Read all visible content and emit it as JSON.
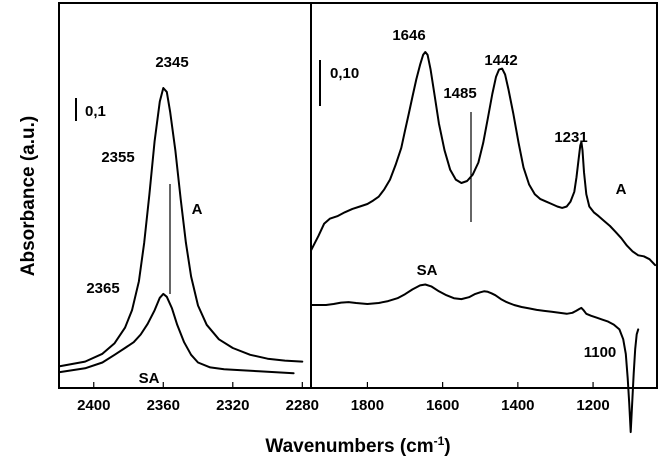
{
  "chart_data": [
    {
      "type": "line",
      "panel": "left",
      "xlabel": "Wavenumbers (cm-1)",
      "ylabel": "Absorbance (a.u.)",
      "xlim": [
        2420,
        2275
      ],
      "x_ticks": [
        2400,
        2360,
        2320,
        2280
      ],
      "y_units": "a.u.",
      "scale_bar": "0,1",
      "peak_labels": [
        {
          "text": "2345",
          "x": 2358
        },
        {
          "text": "2355",
          "x": 2370
        },
        {
          "text": "2365",
          "x": 2380
        }
      ],
      "series": [
        {
          "name": "A",
          "x": [
            2420,
            2405,
            2395,
            2388,
            2382,
            2378,
            2374,
            2371,
            2368,
            2365,
            2362,
            2360,
            2358,
            2356,
            2353,
            2350,
            2347,
            2344,
            2340,
            2335,
            2328,
            2320,
            2310,
            2300,
            2290,
            2280
          ],
          "y": [
            0.012,
            0.017,
            0.025,
            0.036,
            0.052,
            0.07,
            0.1,
            0.14,
            0.19,
            0.245,
            0.286,
            0.3,
            0.296,
            0.275,
            0.235,
            0.185,
            0.14,
            0.105,
            0.075,
            0.055,
            0.04,
            0.031,
            0.024,
            0.02,
            0.018,
            0.017
          ]
        },
        {
          "name": "SA",
          "x": [
            2420,
            2405,
            2395,
            2388,
            2382,
            2377,
            2373,
            2369,
            2365,
            2362,
            2360,
            2358,
            2355,
            2352,
            2348,
            2344,
            2340,
            2333,
            2325,
            2315,
            2305,
            2295,
            2285
          ],
          "y": [
            0.006,
            0.01,
            0.016,
            0.024,
            0.031,
            0.037,
            0.045,
            0.056,
            0.07,
            0.083,
            0.087,
            0.084,
            0.072,
            0.055,
            0.037,
            0.024,
            0.016,
            0.011,
            0.009,
            0.008,
            0.007,
            0.006,
            0.005
          ]
        }
      ]
    },
    {
      "type": "line",
      "panel": "right",
      "xlim": [
        1950,
        1030
      ],
      "x_ticks": [
        1800,
        1600,
        1400,
        1200
      ],
      "scale_bar": "0,10",
      "peak_labels": [
        {
          "text": "1646",
          "x": 1646
        },
        {
          "text": "1485",
          "x": 1485
        },
        {
          "text": "1442",
          "x": 1442
        },
        {
          "text": "1231",
          "x": 1231
        },
        {
          "text": "1100",
          "x": 1100
        }
      ],
      "series": [
        {
          "name": "A",
          "x": [
            1950,
            1930,
            1915,
            1900,
            1880,
            1860,
            1840,
            1820,
            1800,
            1785,
            1770,
            1755,
            1740,
            1725,
            1710,
            1700,
            1690,
            1680,
            1670,
            1660,
            1652,
            1646,
            1640,
            1632,
            1622,
            1610,
            1595,
            1580,
            1565,
            1550,
            1535,
            1520,
            1505,
            1492,
            1480,
            1468,
            1458,
            1450,
            1442,
            1434,
            1425,
            1412,
            1398,
            1385,
            1370,
            1355,
            1340,
            1325,
            1310,
            1295,
            1282,
            1270,
            1260,
            1250,
            1244,
            1238,
            1234,
            1231,
            1228,
            1224,
            1218,
            1210,
            1198,
            1185,
            1170,
            1155,
            1140,
            1125,
            1110,
            1095,
            1080,
            1065,
            1050,
            1035
          ],
          "y": [
            0.04,
            0.07,
            0.095,
            0.105,
            0.11,
            0.118,
            0.125,
            0.13,
            0.135,
            0.142,
            0.15,
            0.165,
            0.185,
            0.215,
            0.25,
            0.285,
            0.32,
            0.355,
            0.39,
            0.42,
            0.44,
            0.446,
            0.44,
            0.41,
            0.36,
            0.3,
            0.245,
            0.205,
            0.185,
            0.178,
            0.182,
            0.195,
            0.22,
            0.26,
            0.31,
            0.36,
            0.395,
            0.41,
            0.412,
            0.4,
            0.37,
            0.32,
            0.26,
            0.21,
            0.175,
            0.155,
            0.145,
            0.14,
            0.135,
            0.13,
            0.127,
            0.13,
            0.14,
            0.16,
            0.19,
            0.23,
            0.255,
            0.262,
            0.245,
            0.2,
            0.155,
            0.13,
            0.118,
            0.11,
            0.1,
            0.09,
            0.078,
            0.065,
            0.05,
            0.038,
            0.03,
            0.028,
            0.022,
            0.01
          ]
        },
        {
          "name": "SA",
          "x": [
            1950,
            1930,
            1910,
            1890,
            1870,
            1850,
            1830,
            1800,
            1770,
            1745,
            1720,
            1700,
            1680,
            1660,
            1646,
            1630,
            1610,
            1590,
            1570,
            1550,
            1530,
            1515,
            1500,
            1490,
            1480,
            1470,
            1460,
            1445,
            1430,
            1410,
            1390,
            1370,
            1350,
            1330,
            1310,
            1290,
            1270,
            1255,
            1245,
            1236,
            1231,
            1226,
            1218,
            1205,
            1190,
            1175,
            1160,
            1145,
            1130,
            1120,
            1113,
            1108,
            1104,
            1100,
            1096,
            1092,
            1088,
            1084,
            1080
          ],
          "y": [
            0.0,
            0.0,
            0.0,
            0.002,
            0.005,
            0.006,
            0.004,
            0.002,
            0.004,
            0.008,
            0.014,
            0.022,
            0.032,
            0.04,
            0.042,
            0.038,
            0.028,
            0.02,
            0.014,
            0.012,
            0.016,
            0.022,
            0.026,
            0.028,
            0.027,
            0.024,
            0.02,
            0.012,
            0.006,
            0.0,
            -0.004,
            -0.007,
            -0.01,
            -0.012,
            -0.014,
            -0.016,
            -0.018,
            -0.016,
            -0.012,
            -0.008,
            -0.006,
            -0.01,
            -0.018,
            -0.022,
            -0.026,
            -0.03,
            -0.034,
            -0.04,
            -0.05,
            -0.07,
            -0.1,
            -0.15,
            -0.2,
            -0.26,
            -0.2,
            -0.14,
            -0.09,
            -0.06,
            -0.05
          ]
        }
      ]
    }
  ]
}
